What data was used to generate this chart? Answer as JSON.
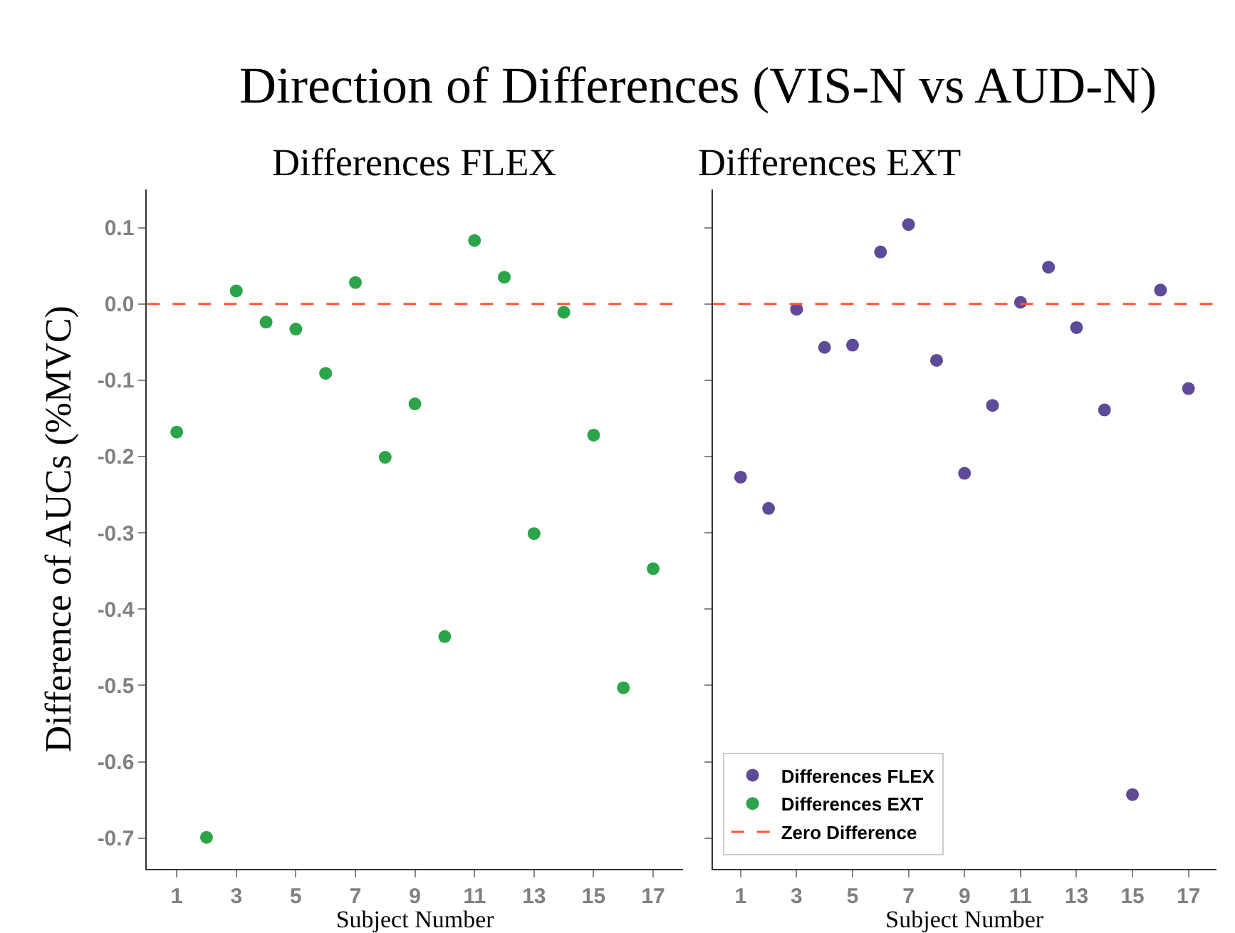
{
  "chart_data": [
    {
      "type": "scatter",
      "title": "Direction of Differences (VIS-N vs AUD-N)",
      "subtitle": "Differences FLEX",
      "xlabel": "Subject Number",
      "ylabel": "Difference of AUCs (%MVC)",
      "x": [
        1,
        2,
        3,
        4,
        5,
        6,
        7,
        8,
        9,
        10,
        11,
        12,
        13,
        14,
        15,
        16,
        17
      ],
      "series": [
        {
          "name": "Differences EXT",
          "color": "#2ca44a",
          "values": [
            -0.168,
            -0.699,
            0.017,
            -0.024,
            -0.033,
            -0.091,
            0.028,
            -0.201,
            -0.131,
            -0.436,
            0.083,
            0.035,
            -0.301,
            -0.011,
            -0.172,
            -0.503,
            -0.347
          ]
        }
      ],
      "xlim": [
        0,
        18
      ],
      "xticks": [
        1,
        3,
        5,
        7,
        9,
        11,
        13,
        15,
        17
      ],
      "ylim": [
        -0.74,
        0.15
      ],
      "yticks": [
        0.1,
        {
          "value": 0,
          "label": "0.0"
        },
        -0.1,
        -0.2,
        -0.3,
        -0.4,
        -0.5,
        -0.6,
        -0.7
      ],
      "marker": "circle",
      "legend": "bottom right",
      "ref_lines": [
        {
          "axis": "y",
          "value": 0,
          "label": "Zero Difference",
          "color": "#ff5733",
          "line_style": "dashed"
        }
      ]
    },
    {
      "type": "scatter",
      "title": "Differences EXT",
      "xlabel": "Subject Number",
      "x": [
        1,
        2,
        3,
        4,
        5,
        6,
        7,
        8,
        9,
        10,
        11,
        12,
        13,
        14,
        15,
        16,
        17
      ],
      "series": [
        {
          "name": "Differences FLEX",
          "color": "#5e4a96",
          "values": [
            -0.227,
            -0.268,
            -0.007,
            -0.057,
            -0.054,
            0.068,
            0.104,
            -0.074,
            -0.222,
            -0.133,
            0.002,
            0.048,
            -0.031,
            -0.139,
            -0.643,
            0.018,
            -0.111
          ]
        }
      ],
      "xlim": [
        0,
        18
      ],
      "xticks": [
        1,
        3,
        5,
        7,
        9,
        11,
        13,
        15,
        17
      ],
      "ylim": [
        -0.74,
        0.15
      ],
      "yticks": [
        0.1,
        0,
        -0.1,
        -0.2,
        -0.3,
        -0.4,
        -0.5,
        -0.6,
        -0.7
      ],
      "tick_labels": "x",
      "marker": "circle",
      "legend": "bottom left",
      "ref_lines": [
        {
          "axis": "y",
          "value": 0,
          "color": "#ff5733",
          "line_style": "dashed"
        }
      ]
    }
  ]
}
